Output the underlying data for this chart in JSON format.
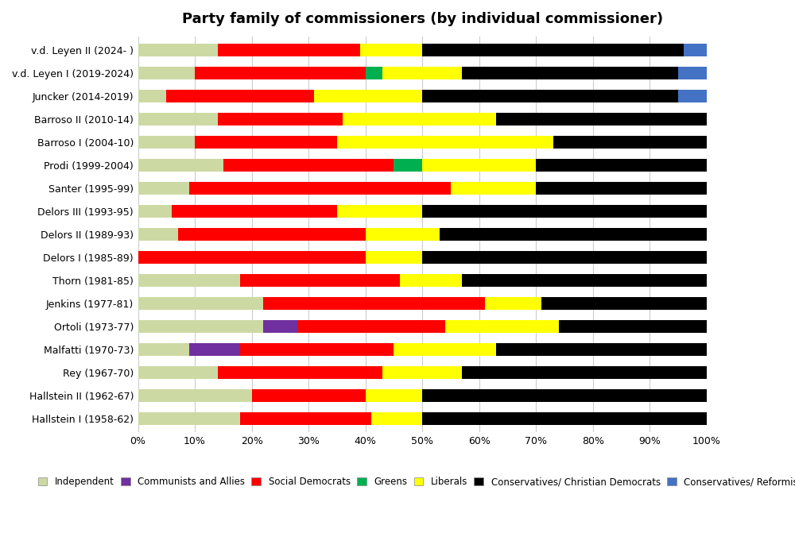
{
  "title": "Party family of commissioners (by individual commissioner)",
  "commissions": [
    "Hallstein I (1958-62)",
    "Hallstein II (1962-67)",
    "Rey (1967-70)",
    "Malfatti (1970-73)",
    "Ortoli (1973-77)",
    "Jenkins (1977-81)",
    "Thorn (1981-85)",
    "Delors I (1985-89)",
    "Delors II (1989-93)",
    "Delors III (1993-95)",
    "Santer (1995-99)",
    "Prodi (1999-2004)",
    "Barroso I (2004-10)",
    "Barroso II (2010-14)",
    "Juncker (2014-2019)",
    "v.d. Leyen I (2019-2024)",
    "v.d. Leyen II (2024- )"
  ],
  "parties": [
    "Independent",
    "Communists and Allies",
    "Social Democrats",
    "Greens",
    "Liberals",
    "Conservatives/ Christian Democrats",
    "Conservatives/ Reformists"
  ],
  "colors": [
    "#cdd9a3",
    "#7030a0",
    "#ff0000",
    "#00b050",
    "#ffff00",
    "#000000",
    "#4472c4"
  ],
  "data": {
    "Hallstein I (1958-62)": [
      18,
      0,
      23,
      0,
      9,
      50,
      0
    ],
    "Hallstein II (1962-67)": [
      20,
      0,
      20,
      0,
      10,
      50,
      0
    ],
    "Rey (1967-70)": [
      14,
      0,
      29,
      0,
      14,
      43,
      0
    ],
    "Malfatti (1970-73)": [
      9,
      9,
      27,
      0,
      18,
      37,
      0
    ],
    "Ortoli (1973-77)": [
      22,
      6,
      26,
      0,
      20,
      26,
      0
    ],
    "Jenkins (1977-81)": [
      22,
      0,
      39,
      0,
      10,
      29,
      0
    ],
    "Thorn (1981-85)": [
      18,
      0,
      28,
      0,
      11,
      43,
      0
    ],
    "Delors I (1985-89)": [
      0,
      0,
      40,
      0,
      10,
      50,
      0
    ],
    "Delors II (1989-93)": [
      7,
      0,
      33,
      0,
      13,
      47,
      0
    ],
    "Delors III (1993-95)": [
      6,
      0,
      29,
      0,
      15,
      50,
      0
    ],
    "Santer (1995-99)": [
      9,
      0,
      46,
      0,
      15,
      30,
      0
    ],
    "Prodi (1999-2004)": [
      15,
      0,
      30,
      5,
      20,
      30,
      0
    ],
    "Barroso I (2004-10)": [
      10,
      0,
      25,
      0,
      38,
      27,
      0
    ],
    "Barroso II (2010-14)": [
      14,
      0,
      22,
      0,
      27,
      37,
      0
    ],
    "Juncker (2014-2019)": [
      5,
      0,
      26,
      0,
      19,
      45,
      5
    ],
    "v.d. Leyen I (2019-2024)": [
      10,
      0,
      30,
      3,
      14,
      38,
      5
    ],
    "v.d. Leyen II (2024- )": [
      14,
      0,
      25,
      0,
      11,
      46,
      4
    ]
  },
  "figsize": [
    10.0,
    6.71
  ],
  "dpi": 100,
  "bar_height": 0.55,
  "title_fontsize": 13,
  "tick_fontsize": 9,
  "legend_fontsize": 8.5
}
